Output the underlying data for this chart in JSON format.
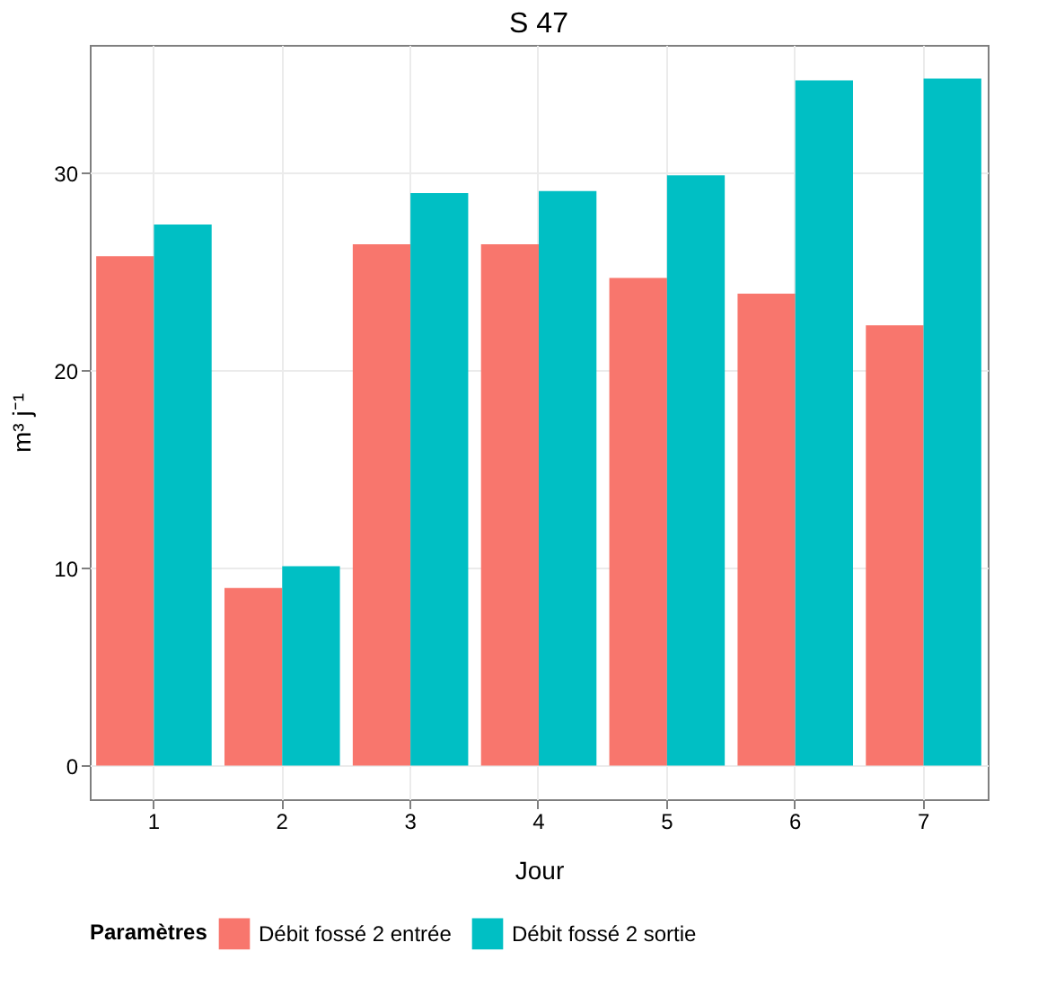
{
  "chart_data": {
    "type": "bar",
    "title": "S 47",
    "xlabel": "Jour",
    "ylabel": "m³ j⁻¹",
    "legend_title": "Paramètres",
    "categories": [
      "1",
      "2",
      "3",
      "4",
      "5",
      "6",
      "7"
    ],
    "series": [
      {
        "name": "Débit fossé 2 entrée",
        "color": "#f8766d",
        "values": [
          25.8,
          9.0,
          26.4,
          26.4,
          24.7,
          23.9,
          22.3
        ]
      },
      {
        "name": "Débit fossé 2 sortie",
        "color": "#00bfc4",
        "values": [
          27.4,
          10.1,
          29.0,
          29.1,
          29.9,
          34.7,
          34.8
        ]
      }
    ],
    "ylim": [
      -1.7,
      36.5
    ],
    "yticks": [
      0,
      10,
      20,
      30
    ],
    "grid": true,
    "legend": "bottom"
  }
}
